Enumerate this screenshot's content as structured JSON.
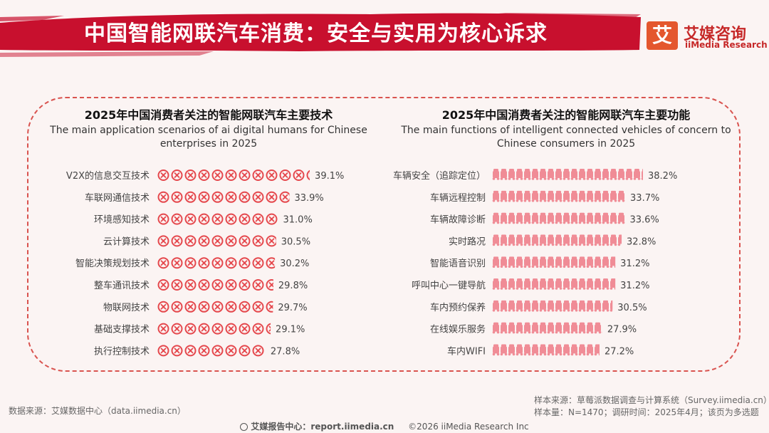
{
  "header": {
    "title": "中国智能网联汽车消费：安全与实用为核心诉求",
    "logo_mark": "艾",
    "logo_cn": "艾媒咨询",
    "logo_en": "iiMedia Research"
  },
  "colors": {
    "banner_red": "#c8102e",
    "icon_red": "#e5484d",
    "bar_pink": "#f08c96",
    "panel_border": "#d9534f"
  },
  "chart_data": [
    {
      "type": "bar",
      "orientation": "horizontal",
      "title": "2025年中国消费者关注的智能网联汽车主要技术",
      "subtitle": "The main application scenarios of ai digital humans for Chinese enterprises in 2025",
      "categories": [
        "V2X的信息交互技术",
        "车联网通信技术",
        "环境感知技术",
        "云计算技术",
        "智能决策规划技术",
        "整车通讯技术",
        "物联网技术",
        "基础支撑技术",
        "执行控制技术"
      ],
      "values": [
        39.1,
        33.9,
        31.0,
        30.5,
        30.2,
        29.8,
        29.7,
        29.1,
        27.8
      ],
      "value_labels": [
        "39.1%",
        "33.9%",
        "31.0%",
        "30.5%",
        "30.2%",
        "29.8%",
        "29.7%",
        "29.1%",
        "27.8%"
      ],
      "unit": "%",
      "mark_style": "circle-icons",
      "xlim": [
        0,
        40
      ]
    },
    {
      "type": "bar",
      "orientation": "horizontal",
      "title": "2025年中国消费者关注的智能网联汽车主要功能",
      "subtitle": "The main functions of intelligent connected vehicles of concern to Chinese consumers in 2025",
      "categories": [
        "车辆安全（追踪定位）",
        "车辆远程控制",
        "车辆故障诊断",
        "实时路况",
        "智能语音识别",
        "呼叫中心一键导航",
        "车内预约保养",
        "在线娱乐服务",
        "车内WIFI"
      ],
      "values": [
        38.2,
        33.7,
        33.6,
        32.8,
        31.2,
        31.2,
        30.5,
        27.9,
        27.2
      ],
      "value_labels": [
        "38.2%",
        "33.7%",
        "33.6%",
        "32.8%",
        "31.2%",
        "31.2%",
        "30.5%",
        "27.9%",
        "27.2%"
      ],
      "unit": "%",
      "mark_style": "vehicle-icons",
      "xlim": [
        0,
        40
      ]
    }
  ],
  "source_left": "数据来源：艾媒数据中心（data.iimedia.cn）",
  "source_right_line1": "样本来源：草莓派数据调查与计算系统（Survey.iimedia.cn）",
  "source_right_line2": "样本量：N=1470；调研时间：2025年4月；该页为多选题",
  "footer": {
    "report_center": "艾媒报告中心：report.iimedia.cn",
    "copyright": "©2026  iiMedia Research  Inc"
  }
}
